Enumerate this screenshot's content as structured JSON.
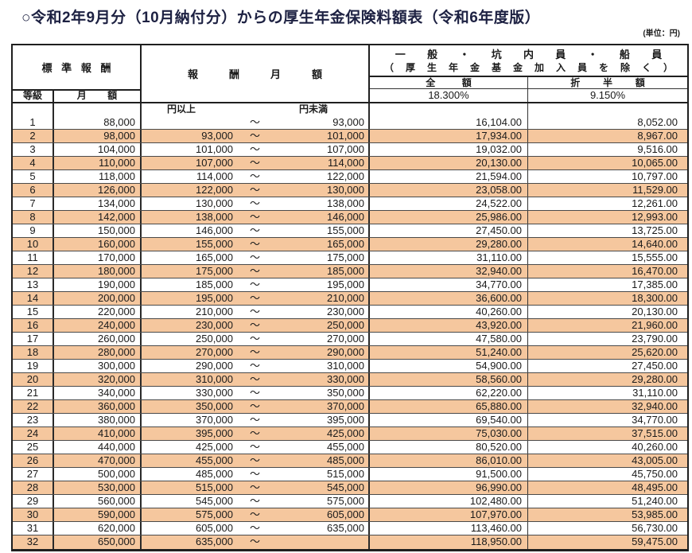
{
  "title": "○令和2年9月分（10月納付分）からの厚生年金保険料額表（令和6年度版）",
  "unit_label": "(単位：円)",
  "header": {
    "standard_remuneration": "標準報酬",
    "grade": "等級",
    "monthly_amount": "月額",
    "remuneration_monthly": "報酬月額",
    "group_line1": "一般・坑内員・船員",
    "group_line2": "（厚生年金基金加入員を除く）",
    "full_amount": "全額",
    "half_amount": "折半額",
    "full_rate": "18.300%",
    "half_rate": "9.150%",
    "lower_label": "円以上",
    "upper_label": "円未満"
  },
  "colors": {
    "row_highlight": "#f5c79e",
    "title_text": "#1d2142",
    "border": "#1f1f1f"
  },
  "rows": [
    {
      "grade": "1",
      "monthly": "88,000",
      "low": "",
      "tilde": "～",
      "high": "93,000",
      "full": "16,104.00",
      "half": "8,052.00"
    },
    {
      "grade": "2",
      "monthly": "98,000",
      "low": "93,000",
      "tilde": "～",
      "high": "101,000",
      "full": "17,934.00",
      "half": "8,967.00"
    },
    {
      "grade": "3",
      "monthly": "104,000",
      "low": "101,000",
      "tilde": "～",
      "high": "107,000",
      "full": "19,032.00",
      "half": "9,516.00"
    },
    {
      "grade": "4",
      "monthly": "110,000",
      "low": "107,000",
      "tilde": "～",
      "high": "114,000",
      "full": "20,130.00",
      "half": "10,065.00"
    },
    {
      "grade": "5",
      "monthly": "118,000",
      "low": "114,000",
      "tilde": "～",
      "high": "122,000",
      "full": "21,594.00",
      "half": "10,797.00"
    },
    {
      "grade": "6",
      "monthly": "126,000",
      "low": "122,000",
      "tilde": "～",
      "high": "130,000",
      "full": "23,058.00",
      "half": "11,529.00"
    },
    {
      "grade": "7",
      "monthly": "134,000",
      "low": "130,000",
      "tilde": "～",
      "high": "138,000",
      "full": "24,522.00",
      "half": "12,261.00"
    },
    {
      "grade": "8",
      "monthly": "142,000",
      "low": "138,000",
      "tilde": "～",
      "high": "146,000",
      "full": "25,986.00",
      "half": "12,993.00"
    },
    {
      "grade": "9",
      "monthly": "150,000",
      "low": "146,000",
      "tilde": "～",
      "high": "155,000",
      "full": "27,450.00",
      "half": "13,725.00"
    },
    {
      "grade": "10",
      "monthly": "160,000",
      "low": "155,000",
      "tilde": "～",
      "high": "165,000",
      "full": "29,280.00",
      "half": "14,640.00"
    },
    {
      "grade": "11",
      "monthly": "170,000",
      "low": "165,000",
      "tilde": "～",
      "high": "175,000",
      "full": "31,110.00",
      "half": "15,555.00"
    },
    {
      "grade": "12",
      "monthly": "180,000",
      "low": "175,000",
      "tilde": "～",
      "high": "185,000",
      "full": "32,940.00",
      "half": "16,470.00"
    },
    {
      "grade": "13",
      "monthly": "190,000",
      "low": "185,000",
      "tilde": "～",
      "high": "195,000",
      "full": "34,770.00",
      "half": "17,385.00"
    },
    {
      "grade": "14",
      "monthly": "200,000",
      "low": "195,000",
      "tilde": "～",
      "high": "210,000",
      "full": "36,600.00",
      "half": "18,300.00"
    },
    {
      "grade": "15",
      "monthly": "220,000",
      "low": "210,000",
      "tilde": "～",
      "high": "230,000",
      "full": "40,260.00",
      "half": "20,130.00"
    },
    {
      "grade": "16",
      "monthly": "240,000",
      "low": "230,000",
      "tilde": "～",
      "high": "250,000",
      "full": "43,920.00",
      "half": "21,960.00"
    },
    {
      "grade": "17",
      "monthly": "260,000",
      "low": "250,000",
      "tilde": "～",
      "high": "270,000",
      "full": "47,580.00",
      "half": "23,790.00"
    },
    {
      "grade": "18",
      "monthly": "280,000",
      "low": "270,000",
      "tilde": "～",
      "high": "290,000",
      "full": "51,240.00",
      "half": "25,620.00"
    },
    {
      "grade": "19",
      "monthly": "300,000",
      "low": "290,000",
      "tilde": "～",
      "high": "310,000",
      "full": "54,900.00",
      "half": "27,450.00"
    },
    {
      "grade": "20",
      "monthly": "320,000",
      "low": "310,000",
      "tilde": "～",
      "high": "330,000",
      "full": "58,560.00",
      "half": "29,280.00"
    },
    {
      "grade": "21",
      "monthly": "340,000",
      "low": "330,000",
      "tilde": "～",
      "high": "350,000",
      "full": "62,220.00",
      "half": "31,110.00"
    },
    {
      "grade": "22",
      "monthly": "360,000",
      "low": "350,000",
      "tilde": "～",
      "high": "370,000",
      "full": "65,880.00",
      "half": "32,940.00"
    },
    {
      "grade": "23",
      "monthly": "380,000",
      "low": "370,000",
      "tilde": "～",
      "high": "395,000",
      "full": "69,540.00",
      "half": "34,770.00"
    },
    {
      "grade": "24",
      "monthly": "410,000",
      "low": "395,000",
      "tilde": "～",
      "high": "425,000",
      "full": "75,030.00",
      "half": "37,515.00"
    },
    {
      "grade": "25",
      "monthly": "440,000",
      "low": "425,000",
      "tilde": "～",
      "high": "455,000",
      "full": "80,520.00",
      "half": "40,260.00"
    },
    {
      "grade": "26",
      "monthly": "470,000",
      "low": "455,000",
      "tilde": "～",
      "high": "485,000",
      "full": "86,010.00",
      "half": "43,005.00"
    },
    {
      "grade": "27",
      "monthly": "500,000",
      "low": "485,000",
      "tilde": "～",
      "high": "515,000",
      "full": "91,500.00",
      "half": "45,750.00"
    },
    {
      "grade": "28",
      "monthly": "530,000",
      "low": "515,000",
      "tilde": "～",
      "high": "545,000",
      "full": "96,990.00",
      "half": "48,495.00"
    },
    {
      "grade": "29",
      "monthly": "560,000",
      "low": "545,000",
      "tilde": "～",
      "high": "575,000",
      "full": "102,480.00",
      "half": "51,240.00"
    },
    {
      "grade": "30",
      "monthly": "590,000",
      "low": "575,000",
      "tilde": "～",
      "high": "605,000",
      "full": "107,970.00",
      "half": "53,985.00"
    },
    {
      "grade": "31",
      "monthly": "620,000",
      "low": "605,000",
      "tilde": "～",
      "high": "635,000",
      "full": "113,460.00",
      "half": "56,730.00"
    },
    {
      "grade": "32",
      "monthly": "650,000",
      "low": "635,000",
      "tilde": "～",
      "high": "",
      "full": "118,950.00",
      "half": "59,475.00"
    }
  ]
}
